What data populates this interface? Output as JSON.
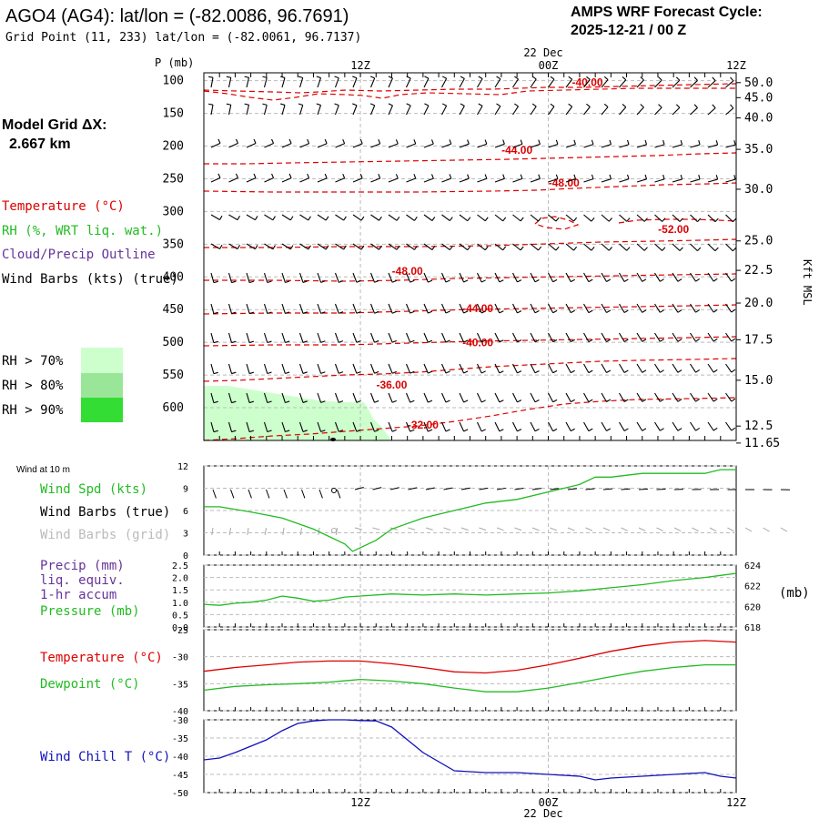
{
  "header": {
    "station": "AGO4 (AG4):  lat/lon = (-82.0086, 96.7691)",
    "grid_point": "Grid Point (11, 233) lat/lon = (-82.0061, 96.7137)",
    "cycle_title": "AMPS WRF Forecast Cycle:",
    "cycle_time": "2025-12-21 / 00  Z",
    "model_grid_label": "Model Grid ΔX:",
    "model_grid_value": "2.667 km"
  },
  "time_axis": {
    "top_date": "22 Dec",
    "bottom_date": "22 Dec",
    "labels": [
      {
        "h": 12,
        "text": "12Z"
      },
      {
        "h": 24,
        "text": "00Z"
      },
      {
        "h": 36,
        "text": "12Z"
      }
    ],
    "start_h": 2,
    "end_h": 36
  },
  "legend": {
    "temperature": "Temperature (°C)",
    "rh": "RH (%, WRT liq. wat.)",
    "cloud": "Cloud/Precip Outline",
    "wind_barbs": "Wind Barbs (kts) (true)",
    "rh70": "RH > 70%",
    "rh80": "RH > 80%",
    "rh90": "RH > 90%",
    "rh70_color": "#ccffcc",
    "rh80_color": "#99e699",
    "rh90_color": "#33dd33"
  },
  "colors": {
    "temperature": "#dd0000",
    "rh": "#22bb22",
    "cloud": "#663399",
    "dewpoint": "#22bb22",
    "windchill": "#1111bb",
    "pressure": "#22bb22",
    "gray": "#aaaaaa"
  },
  "chart_data": [
    {
      "type": "contour",
      "id": "vertical",
      "ylabel": "P (mb)",
      "right_axis_label": "Kft MSL",
      "pressure_ticks": [
        100,
        150,
        200,
        250,
        300,
        350,
        400,
        450,
        500,
        550,
        600
      ],
      "height_ticks": [
        "50.0",
        "45.0",
        "40.0",
        "35.0",
        "30.0",
        "25.0",
        "22.5",
        "20.0",
        "17.5",
        "15.0",
        "12.5",
        "11.65"
      ],
      "height_tick_pressures": [
        103,
        126,
        157,
        205,
        266,
        345,
        390,
        440,
        496,
        558,
        628,
        654
      ],
      "temperature_contour_labels": [
        {
          "text": "-40.00",
          "h": 26.5,
          "p": 108
        },
        {
          "text": "-44.00",
          "h": 22,
          "p": 212
        },
        {
          "text": "-48.00",
          "h": 25,
          "p": 262
        },
        {
          "text": "-52.00",
          "h": 32,
          "p": 333
        },
        {
          "text": "-48.00",
          "h": 15,
          "p": 397
        },
        {
          "text": "-44.00",
          "h": 19.5,
          "p": 454
        },
        {
          "text": "-40.00",
          "h": 19.5,
          "p": 506
        },
        {
          "text": "-36.00",
          "h": 14,
          "p": 571
        },
        {
          "text": "-32.00",
          "h": 16,
          "p": 632
        }
      ]
    },
    {
      "type": "line",
      "id": "wind",
      "title": "Wind at 10 m",
      "series_label": "Wind Spd (kts)",
      "barbs_true_label": "Wind Barbs (true)",
      "barbs_grid_label": "Wind Barbs (grid)",
      "ylim": [
        0,
        12
      ],
      "yticks": [
        0,
        3,
        6,
        9,
        12
      ],
      "x": [
        2,
        3,
        5,
        7,
        9,
        11,
        11.5,
        12,
        13,
        14,
        16,
        18,
        20,
        22,
        24,
        26,
        27,
        28,
        30,
        32,
        34,
        35,
        36
      ],
      "values": [
        6.5,
        6.5,
        5.8,
        5,
        3.5,
        1.5,
        0.5,
        1,
        2,
        3.5,
        5,
        6,
        7,
        7.5,
        8.5,
        9.5,
        10.5,
        10.5,
        11,
        11,
        11,
        11.5,
        11.5
      ]
    },
    {
      "type": "line",
      "id": "precip",
      "precip_label": "Precip (mm)",
      "liq_label": "liq. equiv.",
      "accum_label": "1-hr accum",
      "pressure_label": "Pressure (mb)",
      "right_unit": "(mb)",
      "ylim_precip": [
        0,
        2.5
      ],
      "precip_ticks": [
        "0.0",
        "0.5",
        "1.0",
        "1.5",
        "2.0",
        "2.5"
      ],
      "ylim_pressure": [
        618,
        624
      ],
      "pressure_ticks": [
        618,
        620,
        622,
        624
      ],
      "x": [
        2,
        3,
        4,
        5,
        6,
        7,
        8,
        9,
        10,
        11,
        12,
        14,
        16,
        18,
        20,
        22,
        24,
        26,
        28,
        30,
        32,
        34,
        35,
        36
      ],
      "pressure": [
        620.2,
        620.1,
        620.3,
        620.4,
        620.6,
        621,
        620.8,
        620.5,
        620.6,
        620.9,
        621,
        621.2,
        621.1,
        621.2,
        621.1,
        621.2,
        621.3,
        621.5,
        621.8,
        622.1,
        622.5,
        622.8,
        623,
        623.2
      ]
    },
    {
      "type": "line",
      "id": "temp",
      "temp_label": "Temperature (°C)",
      "dew_label": "Dewpoint (°C)",
      "ylim": [
        -40,
        -25
      ],
      "yticks": [
        -25,
        -30,
        -35,
        -40
      ],
      "x": [
        2,
        4,
        6,
        8,
        10,
        12,
        14,
        16,
        18,
        20,
        22,
        24,
        26,
        28,
        30,
        32,
        34,
        36
      ],
      "temperature": [
        -32.7,
        -32,
        -31.5,
        -31,
        -30.8,
        -30.8,
        -31.3,
        -32,
        -32.8,
        -33,
        -32.5,
        -31.5,
        -30.3,
        -29,
        -28,
        -27.3,
        -27,
        -27.3
      ],
      "dewpoint": [
        -36.2,
        -35.5,
        -35.2,
        -35,
        -34.7,
        -34.2,
        -34.5,
        -35,
        -35.8,
        -36.5,
        -36.5,
        -35.8,
        -34.8,
        -33.7,
        -32.7,
        -32,
        -31.5,
        -31.5
      ]
    },
    {
      "type": "line",
      "id": "chill",
      "label": "Wind Chill T (°C)",
      "ylim": [
        -50,
        -30
      ],
      "yticks": [
        -30,
        -35,
        -40,
        -45,
        -50
      ],
      "x": [
        2,
        3,
        4,
        6,
        7,
        8,
        9,
        10,
        11,
        12,
        13,
        14,
        16,
        18,
        20,
        22,
        24,
        26,
        27,
        28,
        30,
        32,
        34,
        35,
        36
      ],
      "values": [
        -41,
        -40.5,
        -39,
        -35.5,
        -33,
        -31,
        -30.3,
        -30,
        -30,
        -30.2,
        -30.3,
        -32,
        -39,
        -44,
        -44.5,
        -44.5,
        -45,
        -45.5,
        -46.5,
        -46,
        -45.5,
        -45,
        -44.5,
        -45.5,
        -46
      ]
    }
  ]
}
